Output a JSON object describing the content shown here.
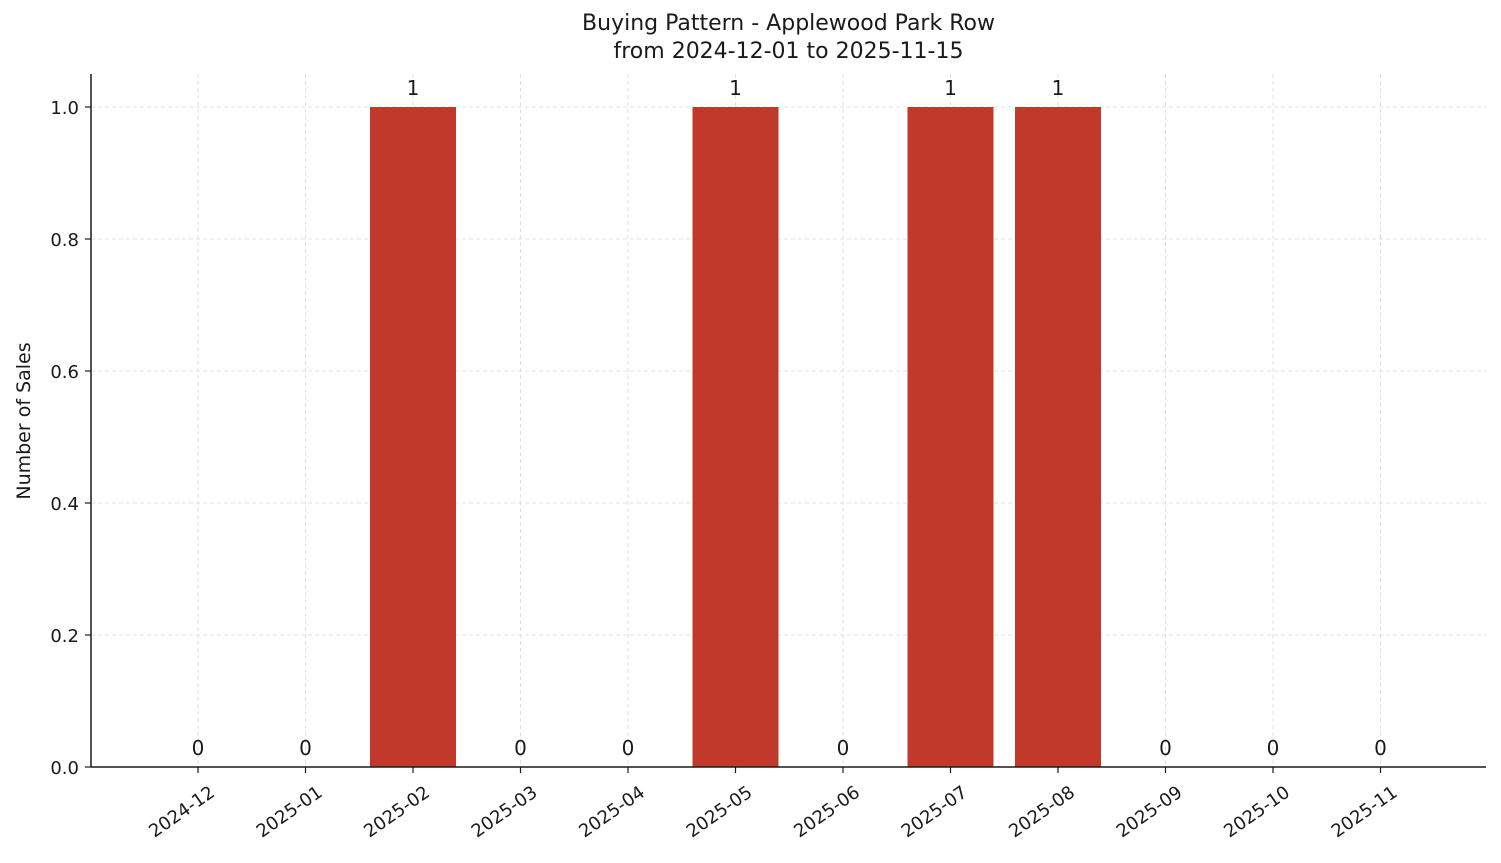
{
  "chart_data": {
    "type": "bar",
    "title": "Buying Pattern - Applewood Park Row",
    "subtitle": "from 2024-12-01 to 2025-11-15",
    "xlabel": "",
    "ylabel": "Number of Sales",
    "categories": [
      "2024-12",
      "2025-01",
      "2025-02",
      "2025-03",
      "2025-04",
      "2025-05",
      "2025-06",
      "2025-07",
      "2025-08",
      "2025-09",
      "2025-10",
      "2025-11"
    ],
    "values": [
      0,
      0,
      1,
      0,
      0,
      1,
      0,
      1,
      1,
      0,
      0,
      0
    ],
    "data_labels": [
      "0",
      "0",
      "1",
      "0",
      "0",
      "1",
      "0",
      "1",
      "1",
      "0",
      "0",
      "0"
    ],
    "ylim": [
      0,
      1.05
    ],
    "yticks": [
      "0.0",
      "0.2",
      "0.4",
      "0.6",
      "0.8",
      "1.0"
    ],
    "grid": true,
    "bar_color": "#c0392b"
  }
}
